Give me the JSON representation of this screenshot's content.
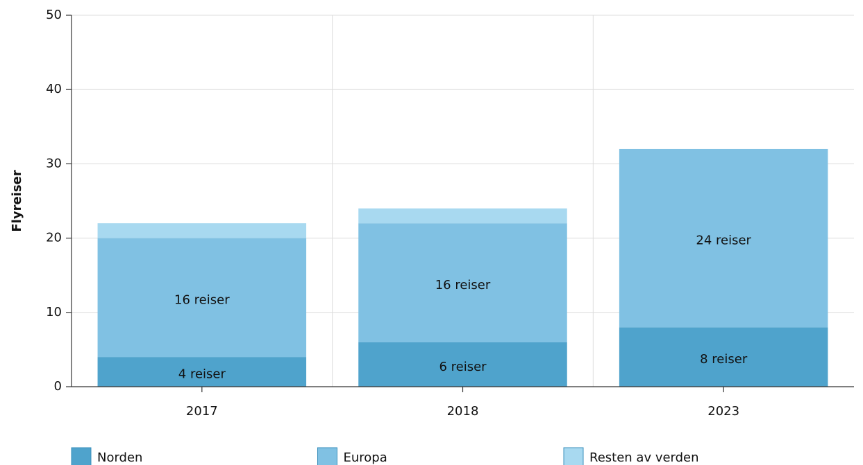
{
  "chart_data": {
    "type": "stacked_bar",
    "y_label": "Flyreiser",
    "categories": [
      "2017",
      "2018",
      "2023"
    ],
    "series": [
      {
        "name": "Norden",
        "color": "#4fa3cc",
        "values": [
          4,
          6,
          8
        ],
        "value_labels": [
          "4 reiser",
          "6 reiser",
          "8 reiser"
        ]
      },
      {
        "name": "Europa",
        "color": "#80c1e3",
        "values": [
          16,
          16,
          24
        ],
        "value_labels": [
          "16 reiser",
          "16 reiser",
          "24 reiser"
        ]
      },
      {
        "name": "Resten av verden",
        "color": "#a8d9f0",
        "values": [
          2,
          2,
          0
        ]
      }
    ],
    "ylim": [
      0,
      50
    ],
    "yticks": [
      0,
      10,
      20,
      30,
      40,
      50
    ],
    "grid": true,
    "legend": "bottom"
  }
}
